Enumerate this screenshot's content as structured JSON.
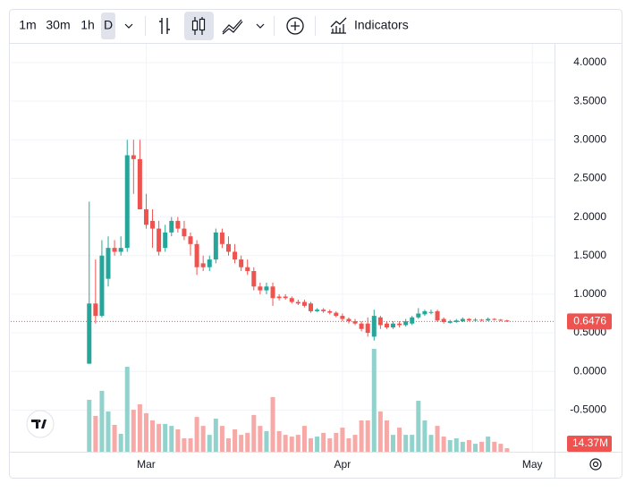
{
  "toolbar": {
    "intervals": [
      "1m",
      "30m",
      "1h",
      "D"
    ],
    "active_interval": 3,
    "indicators": "Indicators"
  },
  "chart_data": {
    "type": "candlestick",
    "x": [
      0,
      1,
      2,
      3,
      4,
      5,
      6,
      7,
      8,
      9,
      10,
      11,
      12,
      13,
      14,
      15,
      16,
      17,
      18,
      19,
      20,
      21,
      22,
      23,
      24,
      25,
      26,
      27,
      28,
      29,
      30,
      31,
      32,
      33,
      34,
      35,
      36,
      37,
      38,
      39,
      40,
      41,
      42,
      43,
      44,
      45,
      46,
      47,
      48,
      49,
      50,
      51,
      52,
      53,
      54,
      55,
      56,
      57,
      58,
      59,
      60,
      61,
      62,
      63,
      64,
      65,
      66
    ],
    "open": [
      0.1,
      0.88,
      0.72,
      1.2,
      1.6,
      1.55,
      1.6,
      2.8,
      2.75,
      2.1,
      1.95,
      1.85,
      1.6,
      1.8,
      1.95,
      1.85,
      1.75,
      1.65,
      1.4,
      1.35,
      1.45,
      1.8,
      1.65,
      1.55,
      1.45,
      1.35,
      1.3,
      1.1,
      1.05,
      1.1,
      0.97,
      0.97,
      0.95,
      0.9,
      0.9,
      0.88,
      0.78,
      0.8,
      0.78,
      0.76,
      0.72,
      0.68,
      0.65,
      0.62,
      0.62,
      0.45,
      0.7,
      0.62,
      0.57,
      0.62,
      0.6,
      0.62,
      0.7,
      0.74,
      0.76,
      0.78,
      0.68,
      0.63,
      0.64,
      0.65,
      0.68,
      0.66,
      0.67,
      0.66,
      0.68,
      0.67,
      0.66
    ],
    "high": [
      2.2,
      1.45,
      1.7,
      1.75,
      1.7,
      1.75,
      3.0,
      3.0,
      3.0,
      2.3,
      2.1,
      1.95,
      1.9,
      2.0,
      2.0,
      1.95,
      1.8,
      1.7,
      1.5,
      1.5,
      1.85,
      1.85,
      1.75,
      1.65,
      1.5,
      1.45,
      1.35,
      1.15,
      1.15,
      1.15,
      1.0,
      1.0,
      0.97,
      0.93,
      0.93,
      0.9,
      0.82,
      0.82,
      0.8,
      0.78,
      0.75,
      0.7,
      0.68,
      0.65,
      0.7,
      0.8,
      0.72,
      0.65,
      0.65,
      0.65,
      0.68,
      0.72,
      0.82,
      0.8,
      0.8,
      0.8,
      0.7,
      0.67,
      0.68,
      0.7,
      0.69,
      0.69,
      0.68,
      0.7,
      0.69,
      0.68,
      0.67
    ],
    "low": [
      0.1,
      0.62,
      0.7,
      1.1,
      1.5,
      1.5,
      1.55,
      2.3,
      2.1,
      1.85,
      1.6,
      1.5,
      1.55,
      1.75,
      1.8,
      1.7,
      1.5,
      1.25,
      1.3,
      1.3,
      1.4,
      1.6,
      1.5,
      1.4,
      1.3,
      1.25,
      1.05,
      1.0,
      1.0,
      0.85,
      0.92,
      0.93,
      0.88,
      0.86,
      0.83,
      0.76,
      0.77,
      0.76,
      0.74,
      0.7,
      0.65,
      0.62,
      0.6,
      0.52,
      0.45,
      0.4,
      0.55,
      0.55,
      0.55,
      0.57,
      0.58,
      0.6,
      0.68,
      0.72,
      0.74,
      0.64,
      0.62,
      0.62,
      0.63,
      0.64,
      0.65,
      0.65,
      0.65,
      0.65,
      0.66,
      0.65,
      0.64
    ],
    "close": [
      0.88,
      0.72,
      1.5,
      1.6,
      1.55,
      1.6,
      2.8,
      2.75,
      2.1,
      1.9,
      1.85,
      1.55,
      1.8,
      1.95,
      1.85,
      1.75,
      1.65,
      1.35,
      1.35,
      1.45,
      1.8,
      1.65,
      1.55,
      1.45,
      1.35,
      1.3,
      1.1,
      1.05,
      1.1,
      0.95,
      0.95,
      0.95,
      0.9,
      0.88,
      0.85,
      0.78,
      0.8,
      0.78,
      0.76,
      0.72,
      0.68,
      0.65,
      0.62,
      0.55,
      0.5,
      0.72,
      0.6,
      0.57,
      0.62,
      0.6,
      0.65,
      0.7,
      0.75,
      0.78,
      0.77,
      0.66,
      0.64,
      0.65,
      0.66,
      0.68,
      0.66,
      0.67,
      0.66,
      0.68,
      0.67,
      0.66,
      0.6476
    ],
    "volume": [
      209,
      144,
      245,
      162,
      108,
      72,
      342,
      169,
      191,
      155,
      126,
      112,
      112,
      104,
      90,
      54,
      54,
      140,
      104,
      68,
      133,
      104,
      54,
      90,
      68,
      76,
      148,
      104,
      83,
      220,
      83,
      68,
      61,
      68,
      104,
      54,
      61,
      76,
      54,
      76,
      97,
      54,
      68,
      126,
      126,
      414,
      162,
      126,
      68,
      97,
      68,
      68,
      205,
      126,
      68,
      104,
      61,
      47,
      54,
      40,
      47,
      32,
      40,
      61,
      40,
      32,
      14.37
    ],
    "volume_last_label": "14.37M",
    "up_color": "#26a69a",
    "down_color": "#ef5350",
    "volume_up_color": "#92d2cc",
    "volume_down_color": "#f7a9a7",
    "xlim": [
      -12.4,
      73.5
    ],
    "xticks": [
      {
        "value": 9,
        "label": "Mar"
      },
      {
        "value": 40,
        "label": "Apr"
      },
      {
        "value": 70,
        "label": "May"
      }
    ],
    "ylim": [
      -1.04,
      4.243
    ],
    "yticks": [
      {
        "value": -0.5,
        "label": "-0.5000"
      },
      {
        "value": 0,
        "label": "0.0000"
      },
      {
        "value": 0.5,
        "label": "0.5000"
      },
      {
        "value": 1,
        "label": "1.0000"
      },
      {
        "value": 1.5,
        "label": "1.5000"
      },
      {
        "value": 2,
        "label": "2.0000"
      },
      {
        "value": 2.5,
        "label": "2.5000"
      },
      {
        "value": 3,
        "label": "3.0000"
      },
      {
        "value": 3.5,
        "label": "3.5000"
      },
      {
        "value": 4,
        "label": "4.0000"
      }
    ],
    "grid": true
  }
}
